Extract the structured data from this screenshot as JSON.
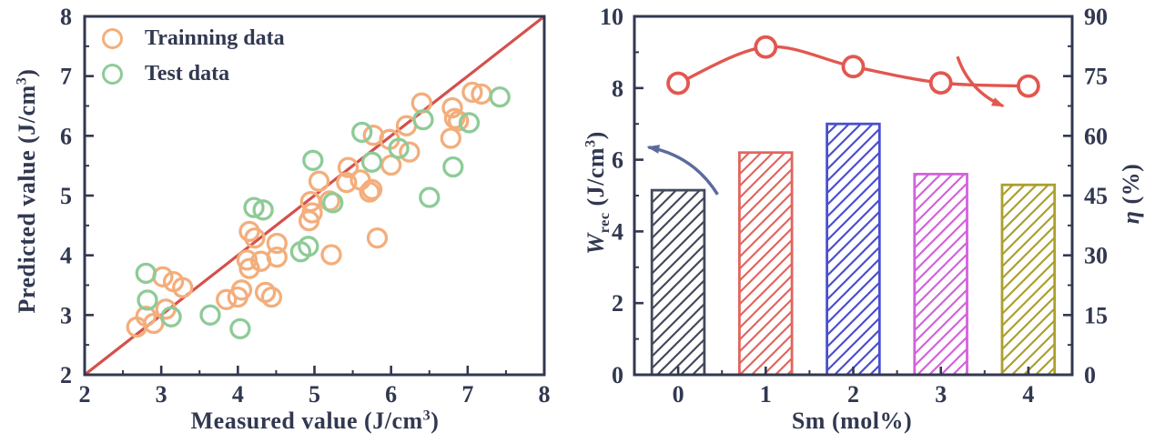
{
  "figure": {
    "background": "#ffffff",
    "axis_color": "#313850"
  },
  "chart_data": [
    {
      "type": "scatter",
      "title": "",
      "xlabel": "Measured value (J/cm³)",
      "ylabel": "Predicted value (J/cm³)",
      "xlabel_parts": {
        "pre": "Measured value (J/cm",
        "sup": "3",
        "post": ")"
      },
      "ylabel_parts": {
        "pre": "Predicted value (J/cm",
        "sup": "3",
        "post": ")"
      },
      "xlim": [
        2,
        8
      ],
      "ylim": [
        2,
        8
      ],
      "xticks": [
        2,
        3,
        4,
        5,
        6,
        7,
        8
      ],
      "yticks": [
        2,
        3,
        4,
        5,
        6,
        7,
        8
      ],
      "minor_tick_step": 0.5,
      "grid": false,
      "legend_position": "upper-left",
      "legend": [
        {
          "label": "Trainning data",
          "color": "#F3AE7C"
        },
        {
          "label": "Test data",
          "color": "#8ECB97"
        }
      ],
      "identity_line": {
        "from": [
          2,
          2
        ],
        "to": [
          8,
          8
        ],
        "color": "#D4504C"
      },
      "series": [
        {
          "name": "Trainning data",
          "color": "#F3AE7C",
          "points": [
            [
              2.68,
              2.8
            ],
            [
              2.9,
              2.86
            ],
            [
              2.8,
              2.98
            ],
            [
              3.02,
              3.64
            ],
            [
              3.06,
              3.1
            ],
            [
              3.16,
              3.56
            ],
            [
              3.28,
              3.46
            ],
            [
              3.85,
              3.26
            ],
            [
              4.0,
              3.3
            ],
            [
              4.05,
              3.42
            ],
            [
              4.36,
              3.38
            ],
            [
              4.44,
              3.3
            ],
            [
              4.12,
              3.92
            ],
            [
              4.15,
              3.78
            ],
            [
              4.3,
              3.9
            ],
            [
              4.15,
              4.4
            ],
            [
              4.22,
              4.29
            ],
            [
              4.51,
              4.2
            ],
            [
              4.51,
              3.97
            ],
            [
              4.93,
              4.58
            ],
            [
              4.95,
              4.9
            ],
            [
              4.97,
              4.71
            ],
            [
              5.06,
              5.24
            ],
            [
              5.2,
              4.91
            ],
            [
              5.22,
              4.01
            ],
            [
              5.42,
              5.22
            ],
            [
              5.44,
              5.47
            ],
            [
              5.6,
              5.26
            ],
            [
              5.72,
              5.06
            ],
            [
              5.75,
              5.1
            ],
            [
              5.82,
              4.29
            ],
            [
              5.77,
              6.01
            ],
            [
              5.98,
              5.94
            ],
            [
              6.0,
              5.51
            ],
            [
              6.2,
              6.17
            ],
            [
              6.24,
              5.73
            ],
            [
              6.78,
              5.96
            ],
            [
              6.4,
              6.55
            ],
            [
              6.8,
              6.47
            ],
            [
              6.88,
              6.25
            ],
            [
              7.06,
              6.73
            ],
            [
              7.18,
              6.7
            ],
            [
              6.83,
              6.29
            ]
          ]
        },
        {
          "name": "Test data",
          "color": "#8ECB97",
          "points": [
            [
              2.8,
              3.7
            ],
            [
              2.82,
              3.25
            ],
            [
              3.13,
              2.97
            ],
            [
              3.64,
              3.0
            ],
            [
              4.03,
              2.77
            ],
            [
              4.21,
              4.8
            ],
            [
              4.33,
              4.76
            ],
            [
              4.82,
              4.06
            ],
            [
              4.92,
              4.15
            ],
            [
              4.98,
              5.59
            ],
            [
              5.24,
              4.88
            ],
            [
              5.62,
              6.06
            ],
            [
              5.75,
              5.56
            ],
            [
              6.1,
              5.79
            ],
            [
              6.42,
              6.27
            ],
            [
              6.5,
              4.97
            ],
            [
              6.81,
              5.48
            ],
            [
              7.02,
              6.22
            ],
            [
              7.42,
              6.65
            ]
          ]
        }
      ]
    },
    {
      "type": "bar+line",
      "title": "",
      "xlabel": "Sm (mol%)",
      "xlabel_parts": {
        "text": "Sm (mol%)"
      },
      "ylabel_left": "W_rec (J/cm³)",
      "ylabel_left_parts": {
        "main": "W",
        "sub": "rec",
        "pre": " (J/cm",
        "sup": "3",
        "post": ")"
      },
      "ylabel_right": "η (%)",
      "ylabel_right_parts": {
        "main": "η",
        "post": " (%)"
      },
      "categories": [
        "0",
        "1",
        "2",
        "3",
        "4"
      ],
      "ylim_left": [
        0,
        10
      ],
      "yticks_left": [
        0,
        2,
        4,
        6,
        8,
        10
      ],
      "minor_step_left": 1,
      "ylim_right": [
        0,
        90
      ],
      "yticks_right": [
        0,
        15,
        30,
        45,
        60,
        75,
        90
      ],
      "minor_step_right": 7.5,
      "grid": false,
      "bars": {
        "axis": "left",
        "values": [
          5.15,
          6.2,
          7.0,
          5.6,
          5.3
        ],
        "colors": [
          "#434A5C",
          "#E2655E",
          "#4A4FD0",
          "#D263DB",
          "#ABA02D"
        ],
        "hatch": "/"
      },
      "line": {
        "name": "η",
        "axis": "right",
        "color": "#E2574F",
        "values": [
          73.2,
          82.3,
          77.4,
          73.3,
          72.5
        ]
      },
      "annotations": [
        {
          "id": "left-axis-arrow",
          "type": "arrow",
          "color": "#5C6B9C",
          "axis": "left",
          "from_data": [
            0.45,
            5.03
          ],
          "to_data": [
            -0.34,
            6.35
          ]
        },
        {
          "id": "right-axis-arrow",
          "type": "arrow",
          "color": "#E2574F",
          "axis": "right",
          "from_data": [
            3.19,
            79.9
          ],
          "to_data": [
            3.71,
            67.5
          ]
        }
      ]
    }
  ]
}
